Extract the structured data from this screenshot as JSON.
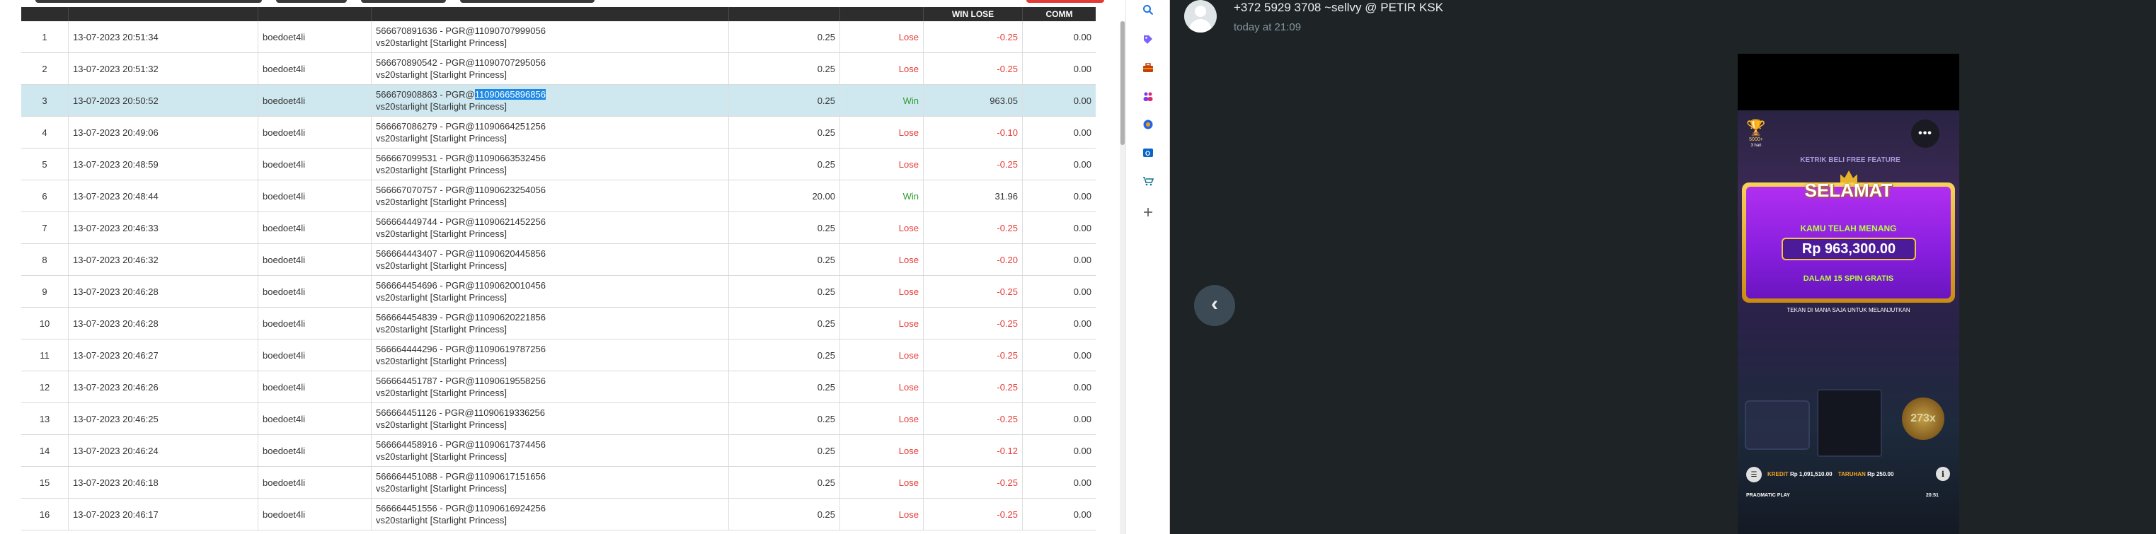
{
  "table": {
    "columns": [
      "",
      "",
      "",
      "",
      "",
      "",
      "WIN LOSE",
      "COMM"
    ],
    "rows": [
      {
        "no": "1",
        "date": "13-07-2023 20:51:34",
        "user": "boedoet4li",
        "desc1": "566670891636 - PGR@11090707999056",
        "desc2": "vs20starlight [Starlight Princess]",
        "bet": "0.25",
        "result": "Lose",
        "winlose": "-0.25",
        "comm": "0.00"
      },
      {
        "no": "2",
        "date": "13-07-2023 20:51:32",
        "user": "boedoet4li",
        "desc1": "566670890542 - PGR@11090707295056",
        "desc2": "vs20starlight [Starlight Princess]",
        "bet": "0.25",
        "result": "Lose",
        "winlose": "-0.25",
        "comm": "0.00"
      },
      {
        "no": "3",
        "date": "13-07-2023 20:50:52",
        "user": "boedoet4li",
        "desc1_prefix": "566670908863 - PGR@",
        "desc1_highlight": "11090665896856",
        "desc2": "vs20starlight [Starlight Princess]",
        "bet": "0.25",
        "result": "Win",
        "winlose": "963.05",
        "comm": "0.00"
      },
      {
        "no": "4",
        "date": "13-07-2023 20:49:06",
        "user": "boedoet4li",
        "desc1": "566667086279 - PGR@11090664251256",
        "desc2": "vs20starlight [Starlight Princess]",
        "bet": "0.25",
        "result": "Lose",
        "winlose": "-0.10",
        "comm": "0.00"
      },
      {
        "no": "5",
        "date": "13-07-2023 20:48:59",
        "user": "boedoet4li",
        "desc1": "566667099531 - PGR@11090663532456",
        "desc2": "vs20starlight [Starlight Princess]",
        "bet": "0.25",
        "result": "Lose",
        "winlose": "-0.25",
        "comm": "0.00"
      },
      {
        "no": "6",
        "date": "13-07-2023 20:48:44",
        "user": "boedoet4li",
        "desc1": "566667070757 - PGR@11090623254056",
        "desc2": "vs20starlight [Starlight Princess]",
        "bet": "20.00",
        "result": "Win",
        "winlose": "31.96",
        "comm": "0.00"
      },
      {
        "no": "7",
        "date": "13-07-2023 20:46:33",
        "user": "boedoet4li",
        "desc1": "566664449744 - PGR@11090621452256",
        "desc2": "vs20starlight [Starlight Princess]",
        "bet": "0.25",
        "result": "Lose",
        "winlose": "-0.25",
        "comm": "0.00"
      },
      {
        "no": "8",
        "date": "13-07-2023 20:46:32",
        "user": "boedoet4li",
        "desc1": "566664443407 - PGR@11090620445856",
        "desc2": "vs20starlight [Starlight Princess]",
        "bet": "0.25",
        "result": "Lose",
        "winlose": "-0.20",
        "comm": "0.00"
      },
      {
        "no": "9",
        "date": "13-07-2023 20:46:28",
        "user": "boedoet4li",
        "desc1": "566664454696 - PGR@11090620010456",
        "desc2": "vs20starlight [Starlight Princess]",
        "bet": "0.25",
        "result": "Lose",
        "winlose": "-0.25",
        "comm": "0.00"
      },
      {
        "no": "10",
        "date": "13-07-2023 20:46:28",
        "user": "boedoet4li",
        "desc1": "566664454839 - PGR@11090620221856",
        "desc2": "vs20starlight [Starlight Princess]",
        "bet": "0.25",
        "result": "Lose",
        "winlose": "-0.25",
        "comm": "0.00"
      },
      {
        "no": "11",
        "date": "13-07-2023 20:46:27",
        "user": "boedoet4li",
        "desc1": "566664444296 - PGR@11090619787256",
        "desc2": "vs20starlight [Starlight Princess]",
        "bet": "0.25",
        "result": "Lose",
        "winlose": "-0.25",
        "comm": "0.00"
      },
      {
        "no": "12",
        "date": "13-07-2023 20:46:26",
        "user": "boedoet4li",
        "desc1": "566664451787 - PGR@11090619558256",
        "desc2": "vs20starlight [Starlight Princess]",
        "bet": "0.25",
        "result": "Lose",
        "winlose": "-0.25",
        "comm": "0.00"
      },
      {
        "no": "13",
        "date": "13-07-2023 20:46:25",
        "user": "boedoet4li",
        "desc1": "566664451126 - PGR@11090619336256",
        "desc2": "vs20starlight [Starlight Princess]",
        "bet": "0.25",
        "result": "Lose",
        "winlose": "-0.25",
        "comm": "0.00"
      },
      {
        "no": "14",
        "date": "13-07-2023 20:46:24",
        "user": "boedoet4li",
        "desc1": "566664458916 - PGR@11090617374456",
        "desc2": "vs20starlight [Starlight Princess]",
        "bet": "0.25",
        "result": "Lose",
        "winlose": "-0.12",
        "comm": "0.00"
      },
      {
        "no": "15",
        "date": "13-07-2023 20:46:18",
        "user": "boedoet4li",
        "desc1": "566664451088 - PGR@11090617151656",
        "desc2": "vs20starlight [Starlight Princess]",
        "bet": "0.25",
        "result": "Lose",
        "winlose": "-0.25",
        "comm": "0.00"
      },
      {
        "no": "16",
        "date": "13-07-2023 20:46:17",
        "user": "boedoet4li",
        "desc1": "566664451556 - PGR@11090616924256",
        "desc2": "vs20starlight [Starlight Princess]",
        "bet": "0.25",
        "result": "Lose",
        "winlose": "-0.25",
        "comm": "0.00"
      }
    ]
  },
  "icon_strip": {
    "icons": [
      "search-icon",
      "tag-icon",
      "toolbox-icon",
      "people-icon",
      "puzzle-icon",
      "outlook-icon",
      "cart-icon",
      "plus-icon"
    ]
  },
  "viewer": {
    "sender": "+372 5929 3708 ~sellvy @ PETIR KSK",
    "timestamp": "today at 21:09",
    "prev_icon": "chevron-left-icon"
  },
  "game": {
    "trophy_count": "5000+",
    "trophy_sub": "3 hari",
    "feature_banner": "KETRIK BELI FREE FEATURE",
    "win_title": "SELAMAT",
    "win_sub": "KAMU TELAH MENANG",
    "win_amount": "Rp 963,300.00",
    "win_spins": "DALAM 15 SPIN GRATIS",
    "continue_text": "TEKAN DI MANA SAJA UNTUK MELANJUTKAN",
    "multiplier": "273x",
    "credit_label": "KREDIT",
    "credit_value": "Rp 1,091,510.00",
    "bet_label": "TARUHAN",
    "bet_value": "Rp 250.00",
    "provider": "PRAGMATIC PLAY",
    "time": "20:51"
  },
  "colors": {
    "lose": "#e53935",
    "win": "#2e9d2e",
    "selected_row": "#cfe8ef",
    "highlight": "#1e88e5",
    "viewer_bg": "#1e2326"
  }
}
